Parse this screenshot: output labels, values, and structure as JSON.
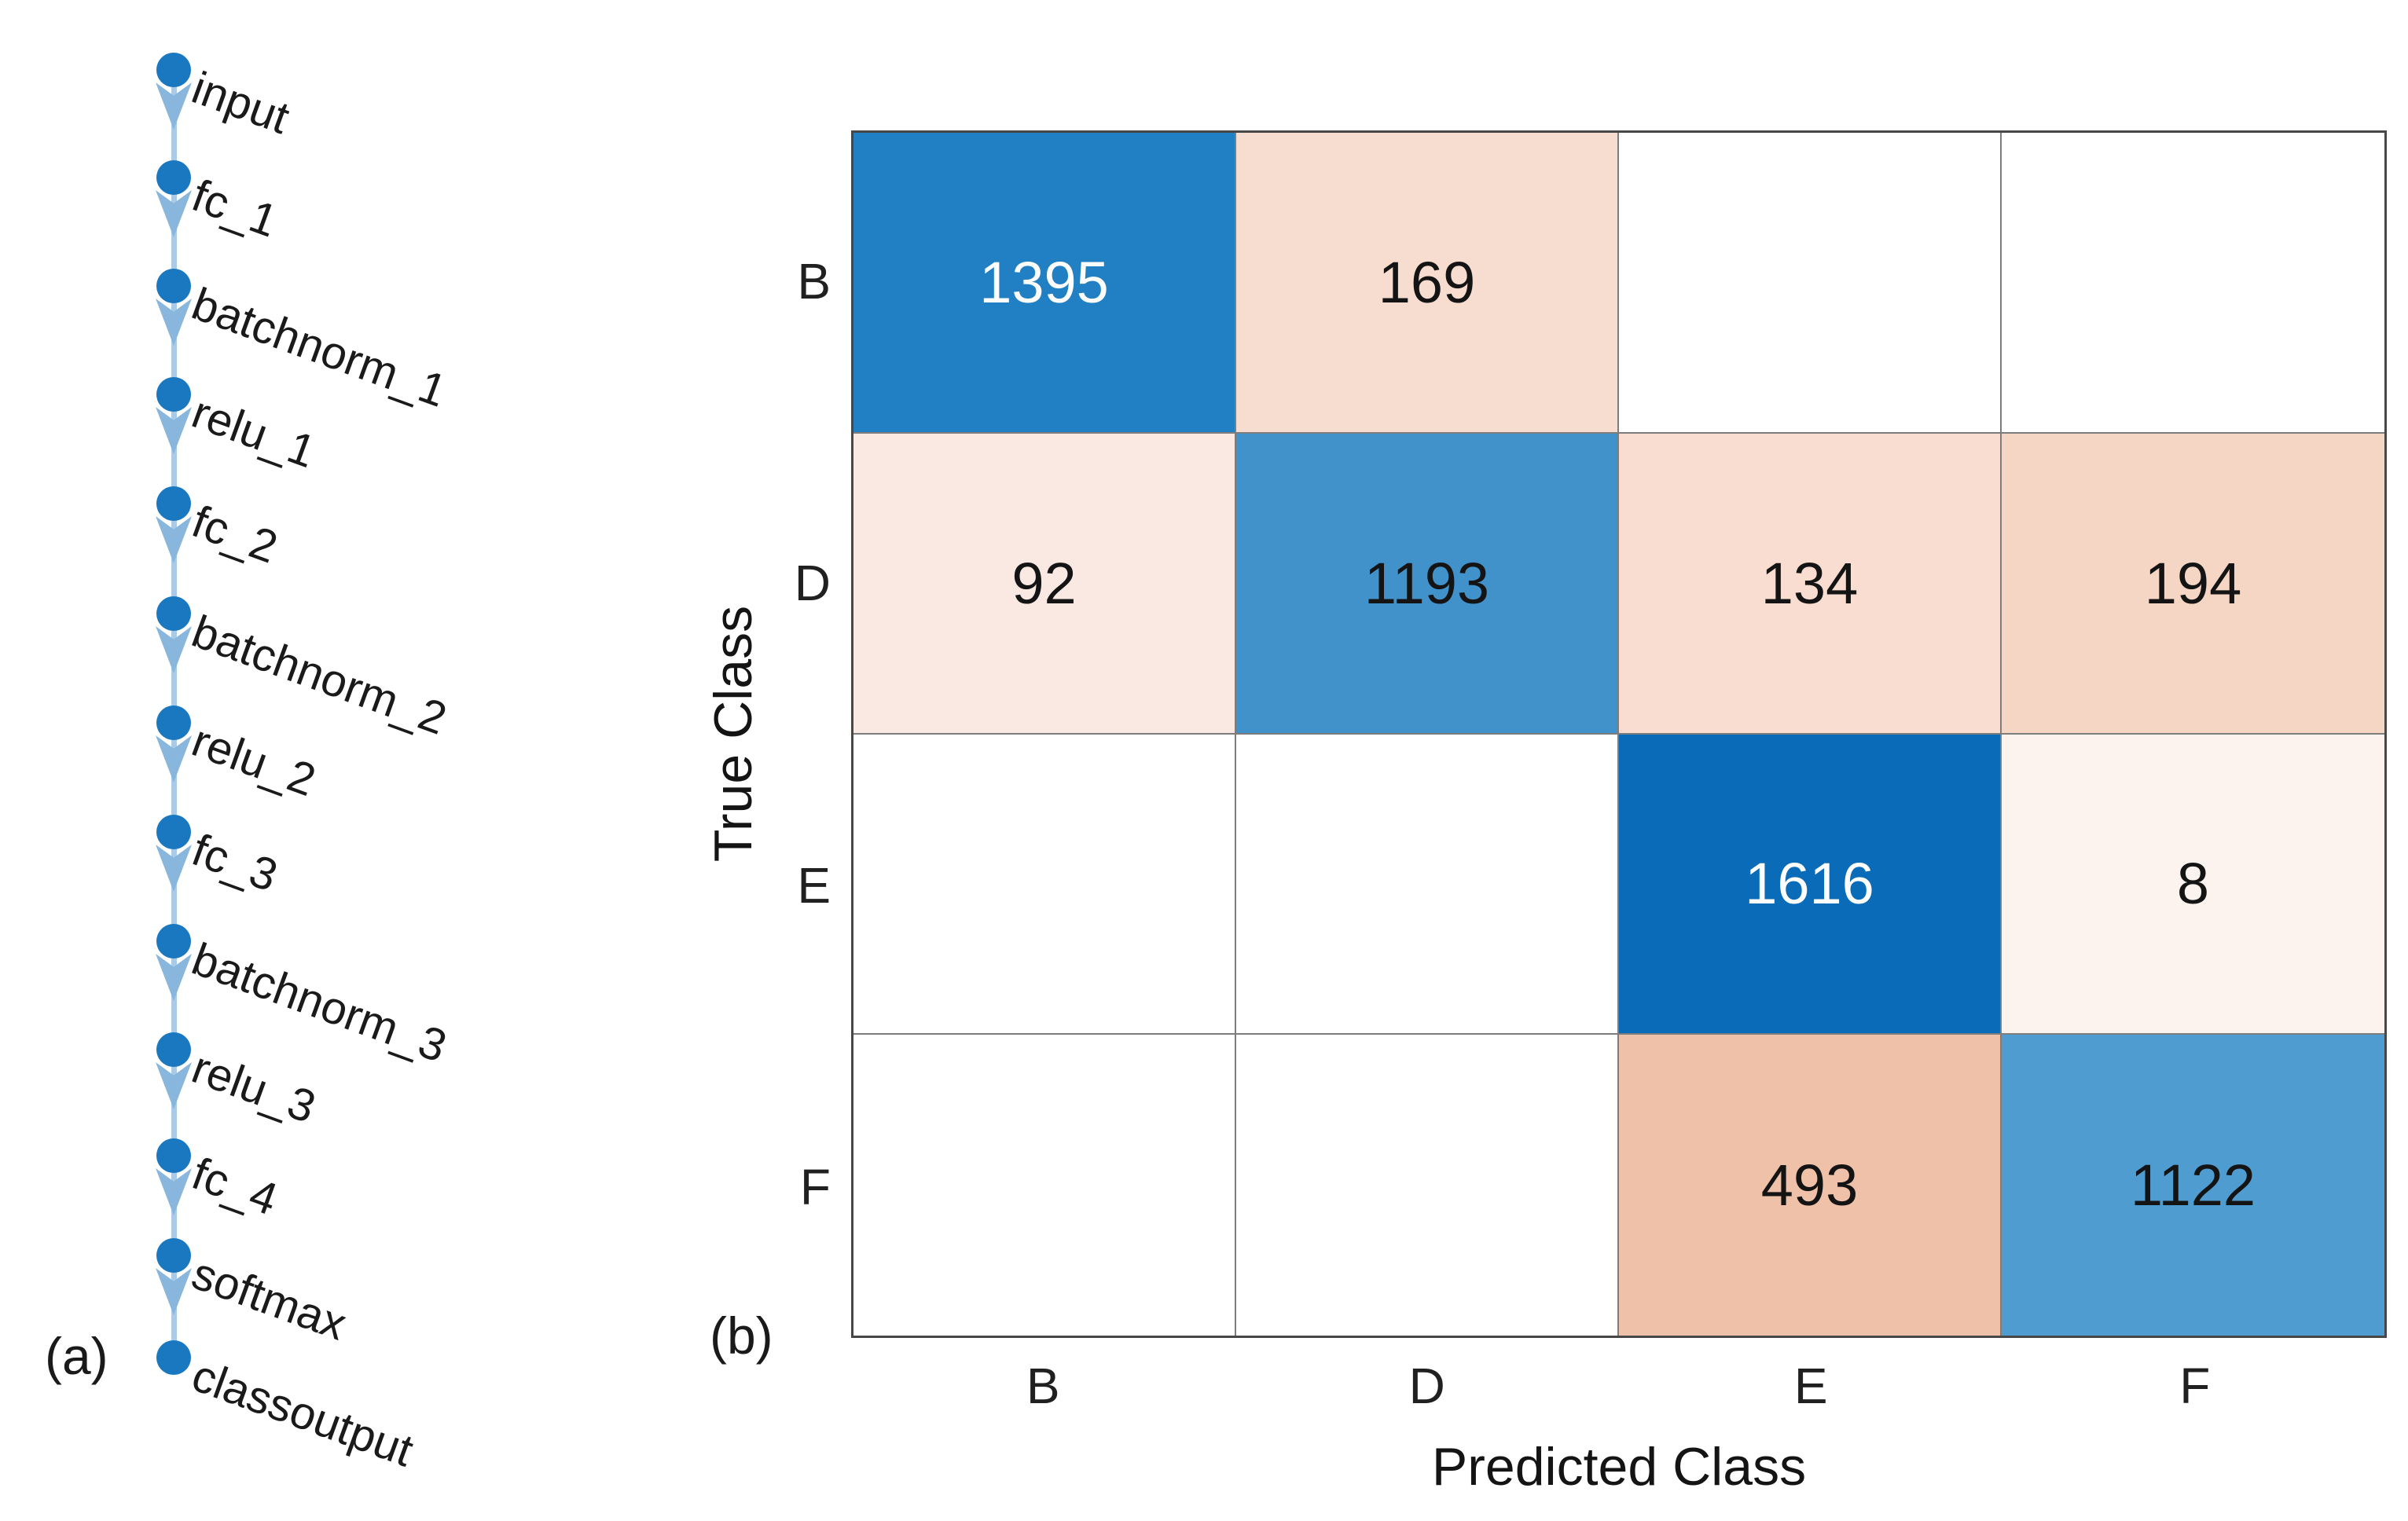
{
  "figure": {
    "panel_a_label": "(a)",
    "panel_b_label": "(b)"
  },
  "diagram": {
    "nodes": [
      "input",
      "fc_1",
      "batchnorm_1",
      "relu_1",
      "fc_2",
      "batchnorm_2",
      "relu_2",
      "fc_3",
      "batchnorm_3",
      "relu_3",
      "fc_4",
      "softmax",
      "classoutput"
    ],
    "node_color": "#1a78c0",
    "edge_color": "#a9cbe8",
    "arrow_color": "#88b6dc",
    "label_color": "#1a1a1a"
  },
  "chart_data": {
    "type": "heatmap",
    "subtype": "confusion-matrix",
    "title": "",
    "xlabel": "Predicted Class",
    "ylabel": "True Class",
    "classes": [
      "B",
      "D",
      "E",
      "F"
    ],
    "matrix": [
      [
        1395,
        169,
        null,
        null
      ],
      [
        92,
        1193,
        134,
        194
      ],
      [
        null,
        null,
        1616,
        8
      ],
      [
        null,
        null,
        493,
        1122
      ]
    ],
    "cell_colors": [
      [
        "#2180c4",
        "#f7dcd0",
        "#ffffff",
        "#ffffff"
      ],
      [
        "#fae9e2",
        "#4191cb",
        "#f8ddd0",
        "#f5d5c3"
      ],
      [
        "#ffffff",
        "#ffffff",
        "#0a6cb8",
        "#fdf3ee"
      ],
      [
        "#ffffff",
        "#ffffff",
        "#efc1a8",
        "#4f9cd1"
      ]
    ],
    "cell_text_colors": [
      [
        "#fdfdfd",
        "#141414",
        "",
        ""
      ],
      [
        "#141414",
        "#141414",
        "#141414",
        "#141414"
      ],
      [
        "",
        "",
        "#fdfdfd",
        "#141414"
      ],
      [
        "",
        "",
        "#141414",
        "#141414"
      ]
    ],
    "diagonal_base_color": "#0072bd",
    "offdiagonal_base_color": "#d95319",
    "grid_line_color": "#7d7d7d",
    "frame_color": "#474747",
    "legend": "none",
    "grid": "on"
  }
}
